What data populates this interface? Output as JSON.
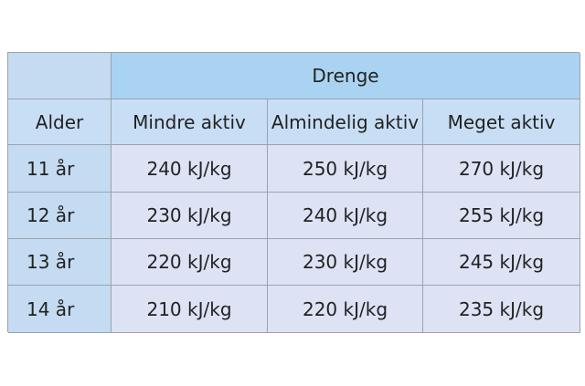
{
  "table": {
    "group": "Drenge",
    "header": [
      "Alder",
      "Mindre aktiv",
      "Almindelig aktiv",
      "Meget aktiv"
    ],
    "rows": [
      [
        "11 år",
        "240 kJ/kg",
        "250 kJ/kg",
        "270 kJ/kg"
      ],
      [
        "12 år",
        "230 kJ/kg",
        "240 kJ/kg",
        "255 kJ/kg"
      ],
      [
        "13 år",
        "220 kJ/kg",
        "230 kJ/kg",
        "245 kJ/kg"
      ],
      [
        "14 år",
        "210 kJ/kg",
        "220 kJ/kg",
        "235 kJ/kg"
      ]
    ]
  }
}
